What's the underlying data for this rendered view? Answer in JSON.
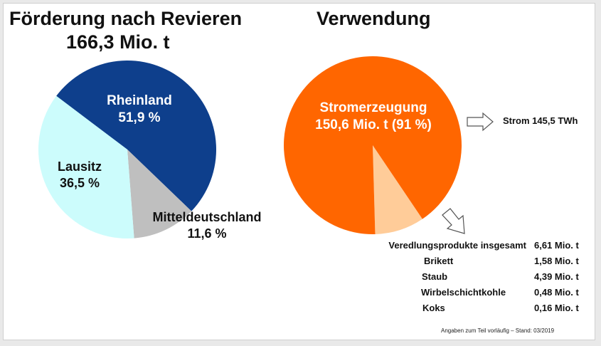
{
  "chart_data": [
    {
      "type": "pie",
      "title": "Förderung nach Revieren",
      "subtitle": "166,3 Mio. t",
      "slices": [
        {
          "label": "Rheinland",
          "value": 51.9,
          "display": "51,9 %",
          "color": "#0e3f8c"
        },
        {
          "label": "Mitteldeutschland",
          "value": 11.6,
          "display": "11,6 %",
          "color": "#bfbfbf"
        },
        {
          "label": "Lausitz",
          "value": 36.5,
          "display": "36,5 %",
          "color": "#ccfcfc"
        }
      ]
    },
    {
      "type": "pie",
      "title": "Verwendung",
      "slices": [
        {
          "label": "Stromerzeugung",
          "value": 91,
          "display": "150,6 Mio. t (91 %)",
          "color": "#ff6600"
        },
        {
          "label": "Veredlungsprodukte insgesamt",
          "value": 9,
          "display": "",
          "color": "#ffcc99"
        }
      ],
      "annotations": {
        "strom": "Strom 145,5 TWh"
      },
      "veredlung": [
        {
          "name": "Veredlungsprodukte insgesamt",
          "value": "6,61 Mio. t"
        },
        {
          "name": "Brikett",
          "value": "1,58 Mio. t"
        },
        {
          "name": "Staub",
          "value": "4,39 Mio. t"
        },
        {
          "name": "Wirbelschichtkohle",
          "value": "0,48 Mio. t"
        },
        {
          "name": "Koks",
          "value": "0,16 Mio. t"
        }
      ],
      "footnote": "Angaben zum Teil vorläufig – Stand: 03/2019"
    }
  ]
}
